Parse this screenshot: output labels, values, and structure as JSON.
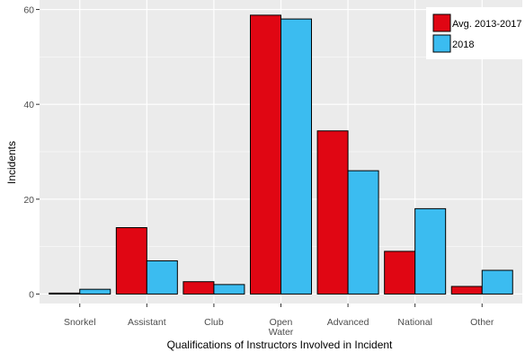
{
  "chart_data": {
    "type": "bar",
    "categories": [
      [
        "Snorkel"
      ],
      [
        "Assistant"
      ],
      [
        "Club"
      ],
      [
        "Open",
        "Water"
      ],
      [
        "Advanced"
      ],
      [
        "National"
      ],
      [
        "Other"
      ]
    ],
    "series": [
      {
        "name": "Avg. 2013-2017",
        "values": [
          0.2,
          14,
          2.6,
          58.8,
          34.4,
          9,
          1.6
        ],
        "color": "#e00613"
      },
      {
        "name": "2018",
        "values": [
          1,
          7,
          2,
          58,
          26,
          18,
          5
        ],
        "color": "#3bbcf0"
      }
    ],
    "title": "",
    "xlabel": "Qualifications of Instructors Involved in Incident",
    "ylabel": "Incidents",
    "ylim": [
      -2,
      62
    ],
    "yticks": [
      0,
      20,
      40,
      60
    ],
    "grid": true,
    "legend_position": "top-right",
    "panel_color": "#ebebeb",
    "grid_color": "#ffffff"
  }
}
